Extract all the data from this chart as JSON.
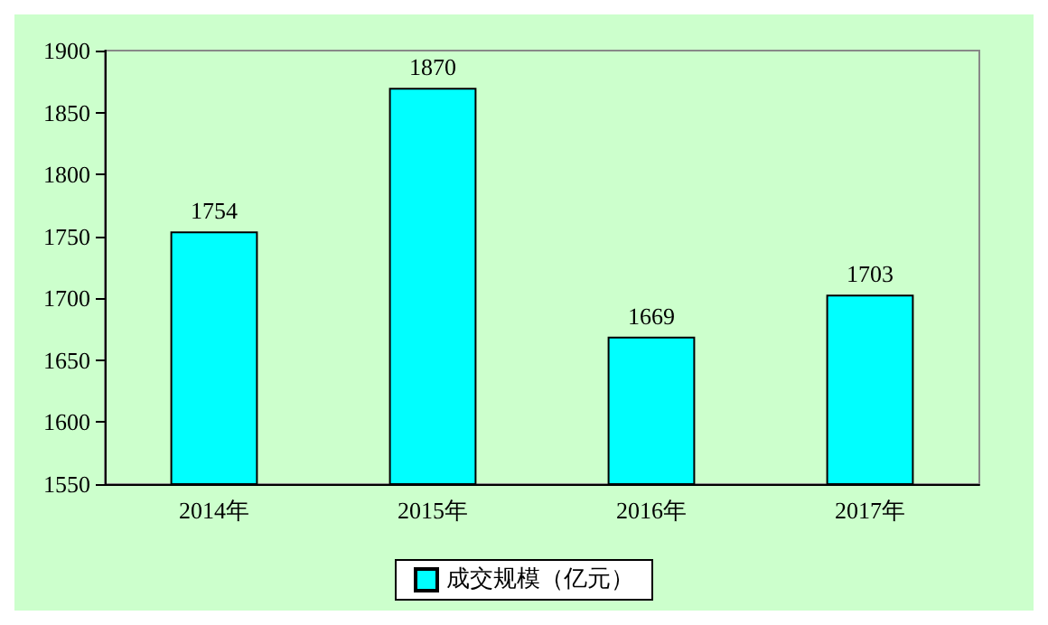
{
  "chart_data": {
    "type": "bar",
    "categories": [
      "2014年",
      "2015年",
      "2016年",
      "2017年"
    ],
    "series": [
      {
        "name": "成交规模（亿元）",
        "color": "#00ffff",
        "values": [
          1754,
          1870,
          1669,
          1703
        ]
      }
    ],
    "ylim": [
      1550,
      1900
    ],
    "yticks": [
      1550,
      1600,
      1650,
      1700,
      1750,
      1800,
      1850,
      1900
    ],
    "data_labels": true,
    "legend": "bottom",
    "grid": false
  }
}
